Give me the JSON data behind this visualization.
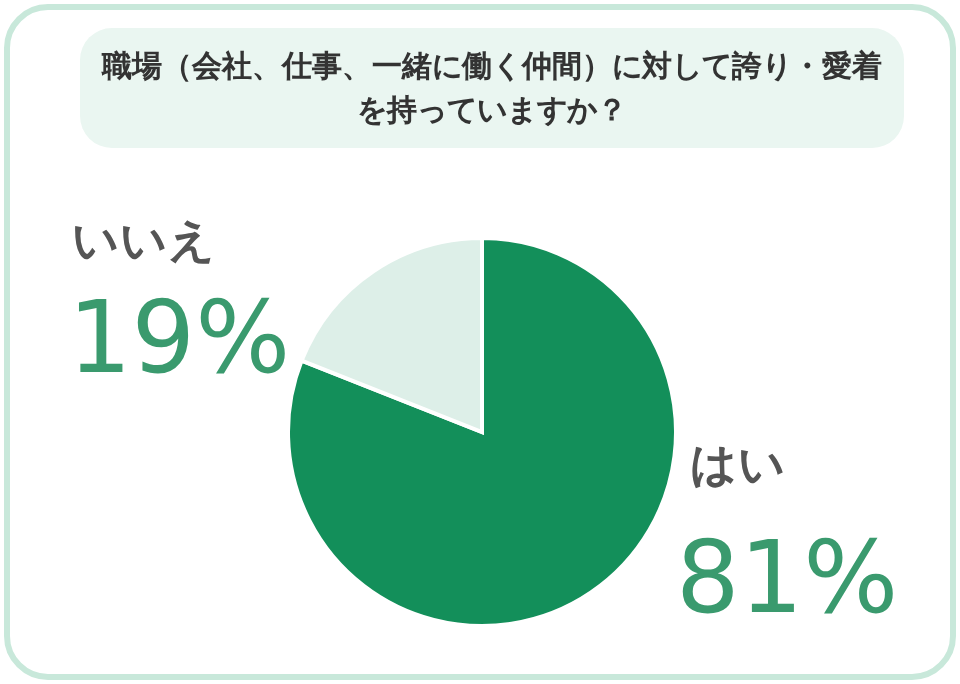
{
  "chart_data": {
    "type": "pie",
    "title": "職場（会社、仕事、一緒に働く仲間）に対して誇り・愛着を持っていますか？",
    "categories": [
      "はい",
      "いいえ"
    ],
    "values": [
      81,
      19
    ],
    "colors": [
      "#138f5a",
      "#ddefe8"
    ],
    "value_labels": [
      "81%",
      "19%"
    ]
  }
}
